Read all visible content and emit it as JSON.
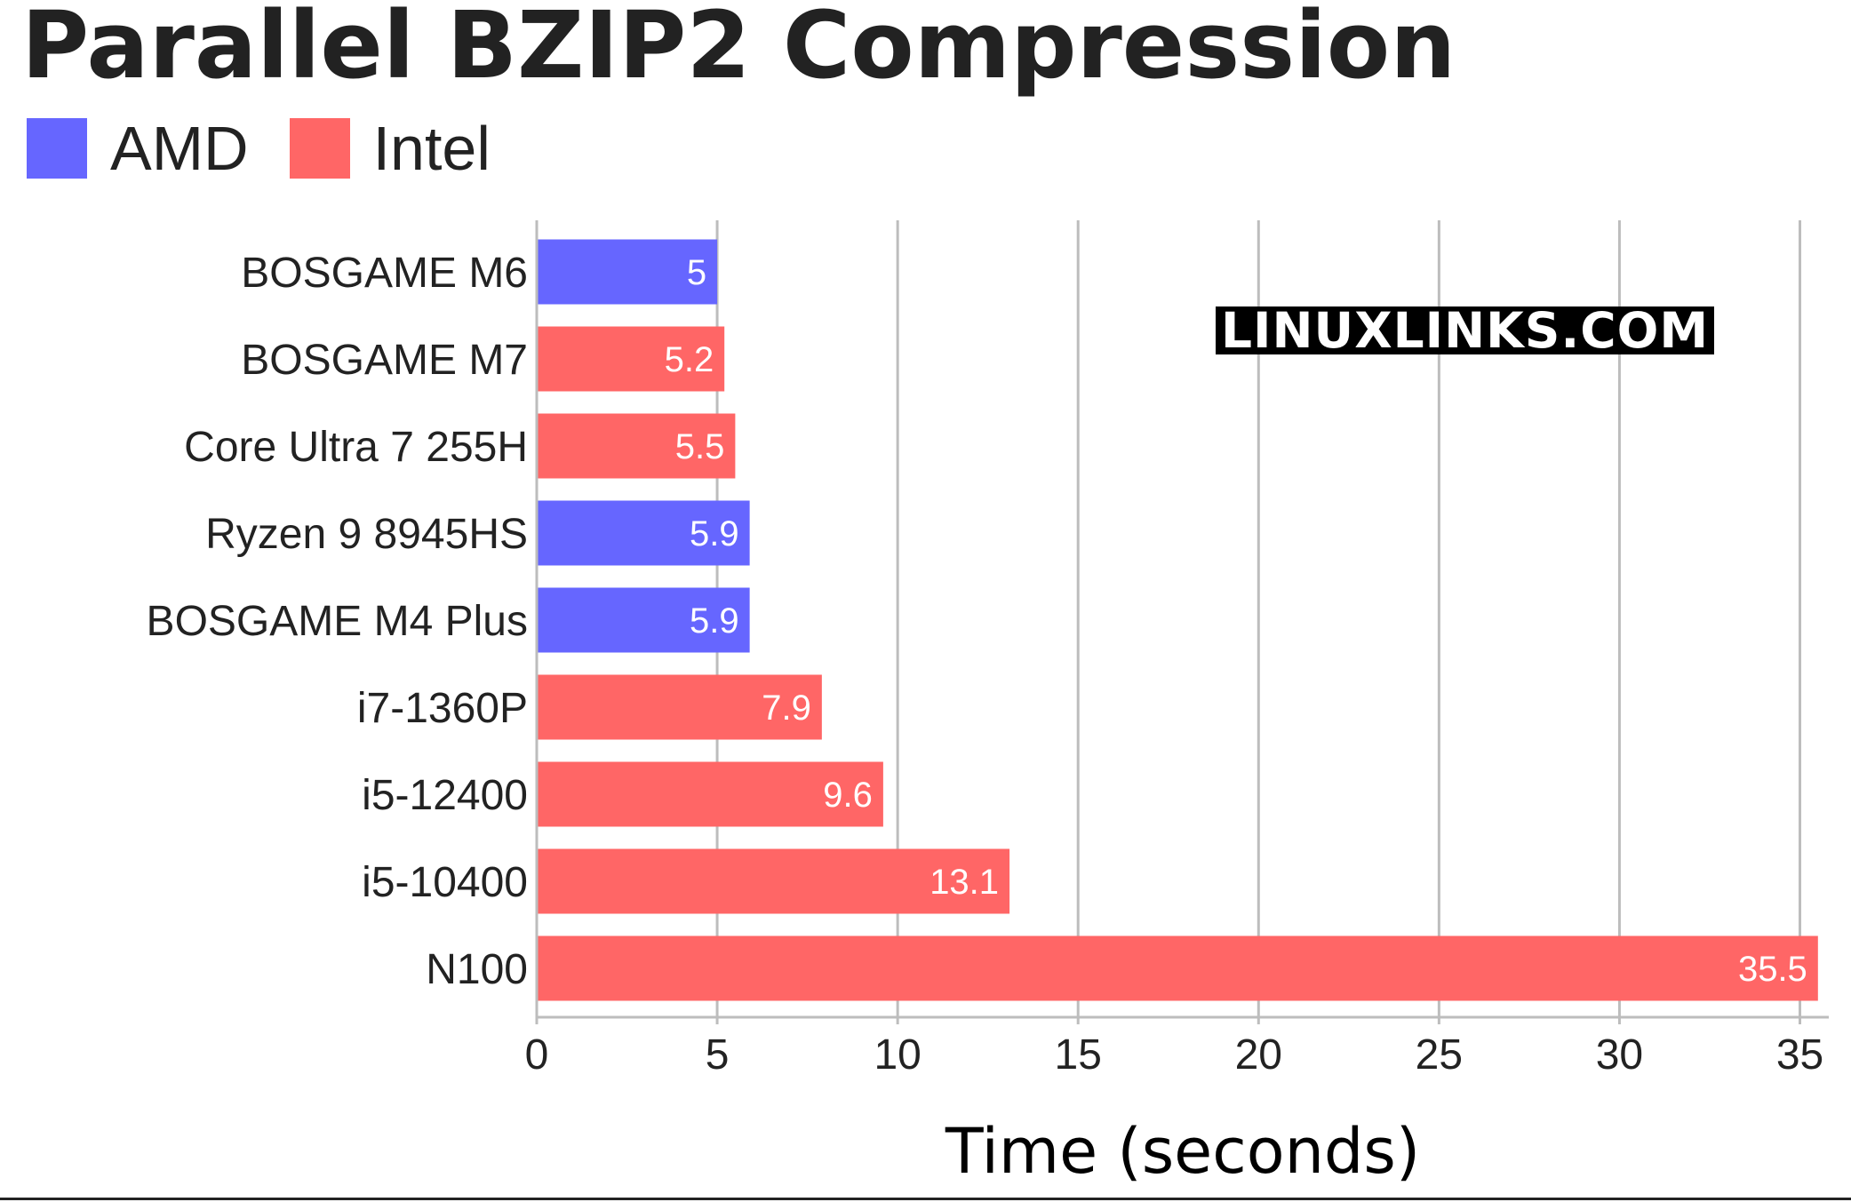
{
  "chart_data": {
    "type": "bar",
    "orientation": "horizontal",
    "title": "Parallel BZIP2 Compression",
    "xlabel": "Time (seconds)",
    "ylabel": "",
    "xlim": [
      0,
      35.8
    ],
    "xticks": [
      0,
      5,
      10,
      15,
      20,
      25,
      30,
      35
    ],
    "grid": "vertical",
    "legend_position": "top-left",
    "legend": [
      {
        "name": "AMD",
        "color": "#6666ff"
      },
      {
        "name": "Intel",
        "color": "#ff6666"
      }
    ],
    "categories": [
      "BOSGAME M6",
      "BOSGAME M7",
      "Core Ultra 7 255H",
      "Ryzen 9 8945HS",
      "BOSGAME M4 Plus",
      "i7-1360P",
      "i5-12400",
      "i5-10400",
      "N100"
    ],
    "values": [
      5,
      5.2,
      5.5,
      5.9,
      5.9,
      7.9,
      9.6,
      13.1,
      35.5
    ],
    "value_labels": [
      "5",
      "5.2",
      "5.5",
      "5.9",
      "5.9",
      "7.9",
      "9.6",
      "13.1",
      "35.5"
    ],
    "bar_vendor": [
      "AMD",
      "Intel",
      "Intel",
      "AMD",
      "AMD",
      "Intel",
      "Intel",
      "Intel",
      "Intel"
    ],
    "watermark": "LINUXLINKS.COM"
  }
}
